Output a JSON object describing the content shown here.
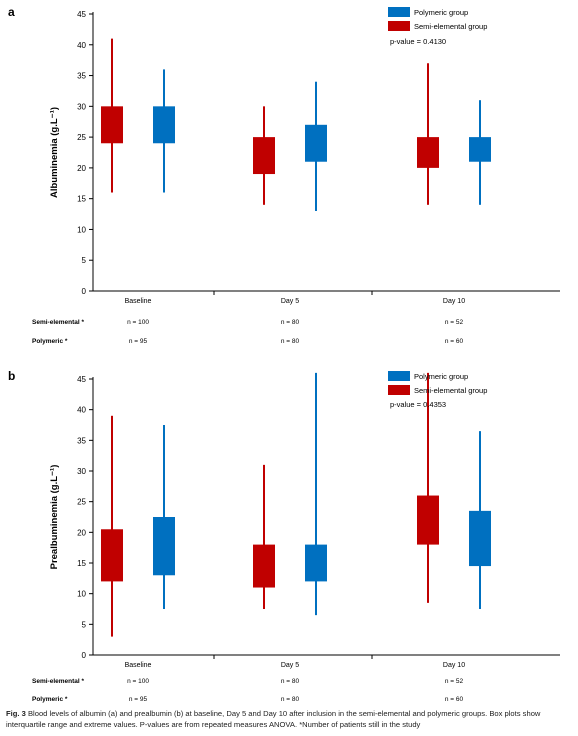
{
  "chart_data": [
    {
      "type": "box",
      "panel_label": "a",
      "ylabel": "Albuminemia (g.L⁻¹)",
      "ylim": [
        0,
        45
      ],
      "yticks": [
        0,
        5,
        10,
        15,
        20,
        25,
        30,
        35,
        40,
        45
      ],
      "categories": [
        "Baseline",
        "Day 5",
        "Day 10"
      ],
      "series": [
        {
          "name": "Semi-elemental group",
          "color": "#c00000",
          "boxes": [
            {
              "min": 16,
              "q1": 24,
              "q3": 30,
              "max": 41
            },
            {
              "min": 14,
              "q1": 19,
              "q3": 25,
              "max": 30
            },
            {
              "min": 14,
              "q1": 20,
              "q3": 25,
              "max": 37
            }
          ]
        },
        {
          "name": "Polymeric group",
          "color": "#0070c0",
          "boxes": [
            {
              "min": 16,
              "q1": 24,
              "q3": 30,
              "max": 36
            },
            {
              "min": 13,
              "q1": 21,
              "q3": 27,
              "max": 34
            },
            {
              "min": 14,
              "q1": 21,
              "q3": 25,
              "max": 31
            }
          ]
        }
      ],
      "legend": [
        "Polymeric group",
        "Semi-elemental group"
      ],
      "legend_position": "top-right",
      "annotation": "p-value = 0.4130",
      "counts": [
        {
          "label": "Semi-elemental *",
          "values": [
            "n = 100",
            "n = 80",
            "n = 52"
          ]
        },
        {
          "label": "Polymeric *",
          "values": [
            "n = 95",
            "n = 80",
            "n = 60"
          ]
        }
      ]
    },
    {
      "type": "box",
      "panel_label": "b",
      "ylabel": "Prealbuminemia (g.L⁻¹)",
      "ylim": [
        0,
        45
      ],
      "yticks": [
        0,
        5,
        10,
        15,
        20,
        25,
        30,
        35,
        40,
        45
      ],
      "categories": [
        "Baseline",
        "Day 5",
        "Day 10"
      ],
      "series": [
        {
          "name": "Semi-elemental group",
          "color": "#c00000",
          "boxes": [
            {
              "min": 3,
              "q1": 12,
              "q3": 20.5,
              "max": 39
            },
            {
              "min": 7.5,
              "q1": 11,
              "q3": 18,
              "max": 31
            },
            {
              "min": 8.5,
              "q1": 18,
              "q3": 26,
              "max": 46
            }
          ]
        },
        {
          "name": "Polymeric group",
          "color": "#0070c0",
          "boxes": [
            {
              "min": 7.5,
              "q1": 13,
              "q3": 22.5,
              "max": 37.5
            },
            {
              "min": 6.5,
              "q1": 12,
              "q3": 18,
              "max": 46
            },
            {
              "min": 7.5,
              "q1": 14.5,
              "q3": 23.5,
              "max": 36.5
            }
          ]
        }
      ],
      "legend": [
        "Polymeric group",
        "Semi-elemental group"
      ],
      "legend_position": "top-right",
      "annotation": "p-value = 0.4353",
      "counts": [
        {
          "label": "Semi-elemental *",
          "values": [
            "n = 100",
            "n = 80",
            "n = 52"
          ]
        },
        {
          "label": "Polymeric *",
          "values": [
            "n = 95",
            "n = 80",
            "n = 60"
          ]
        }
      ]
    }
  ],
  "caption": {
    "label": "Fig. 3",
    "text": "Blood levels of albumin (a) and prealbumin (b) at baseline, Day 5 and Day 10 after inclusion in the semi-elemental and polymeric groups. Box plots show interquartile range and extreme values. P-values are from repeated measures ANOVA. *Number of patients still in the study"
  }
}
